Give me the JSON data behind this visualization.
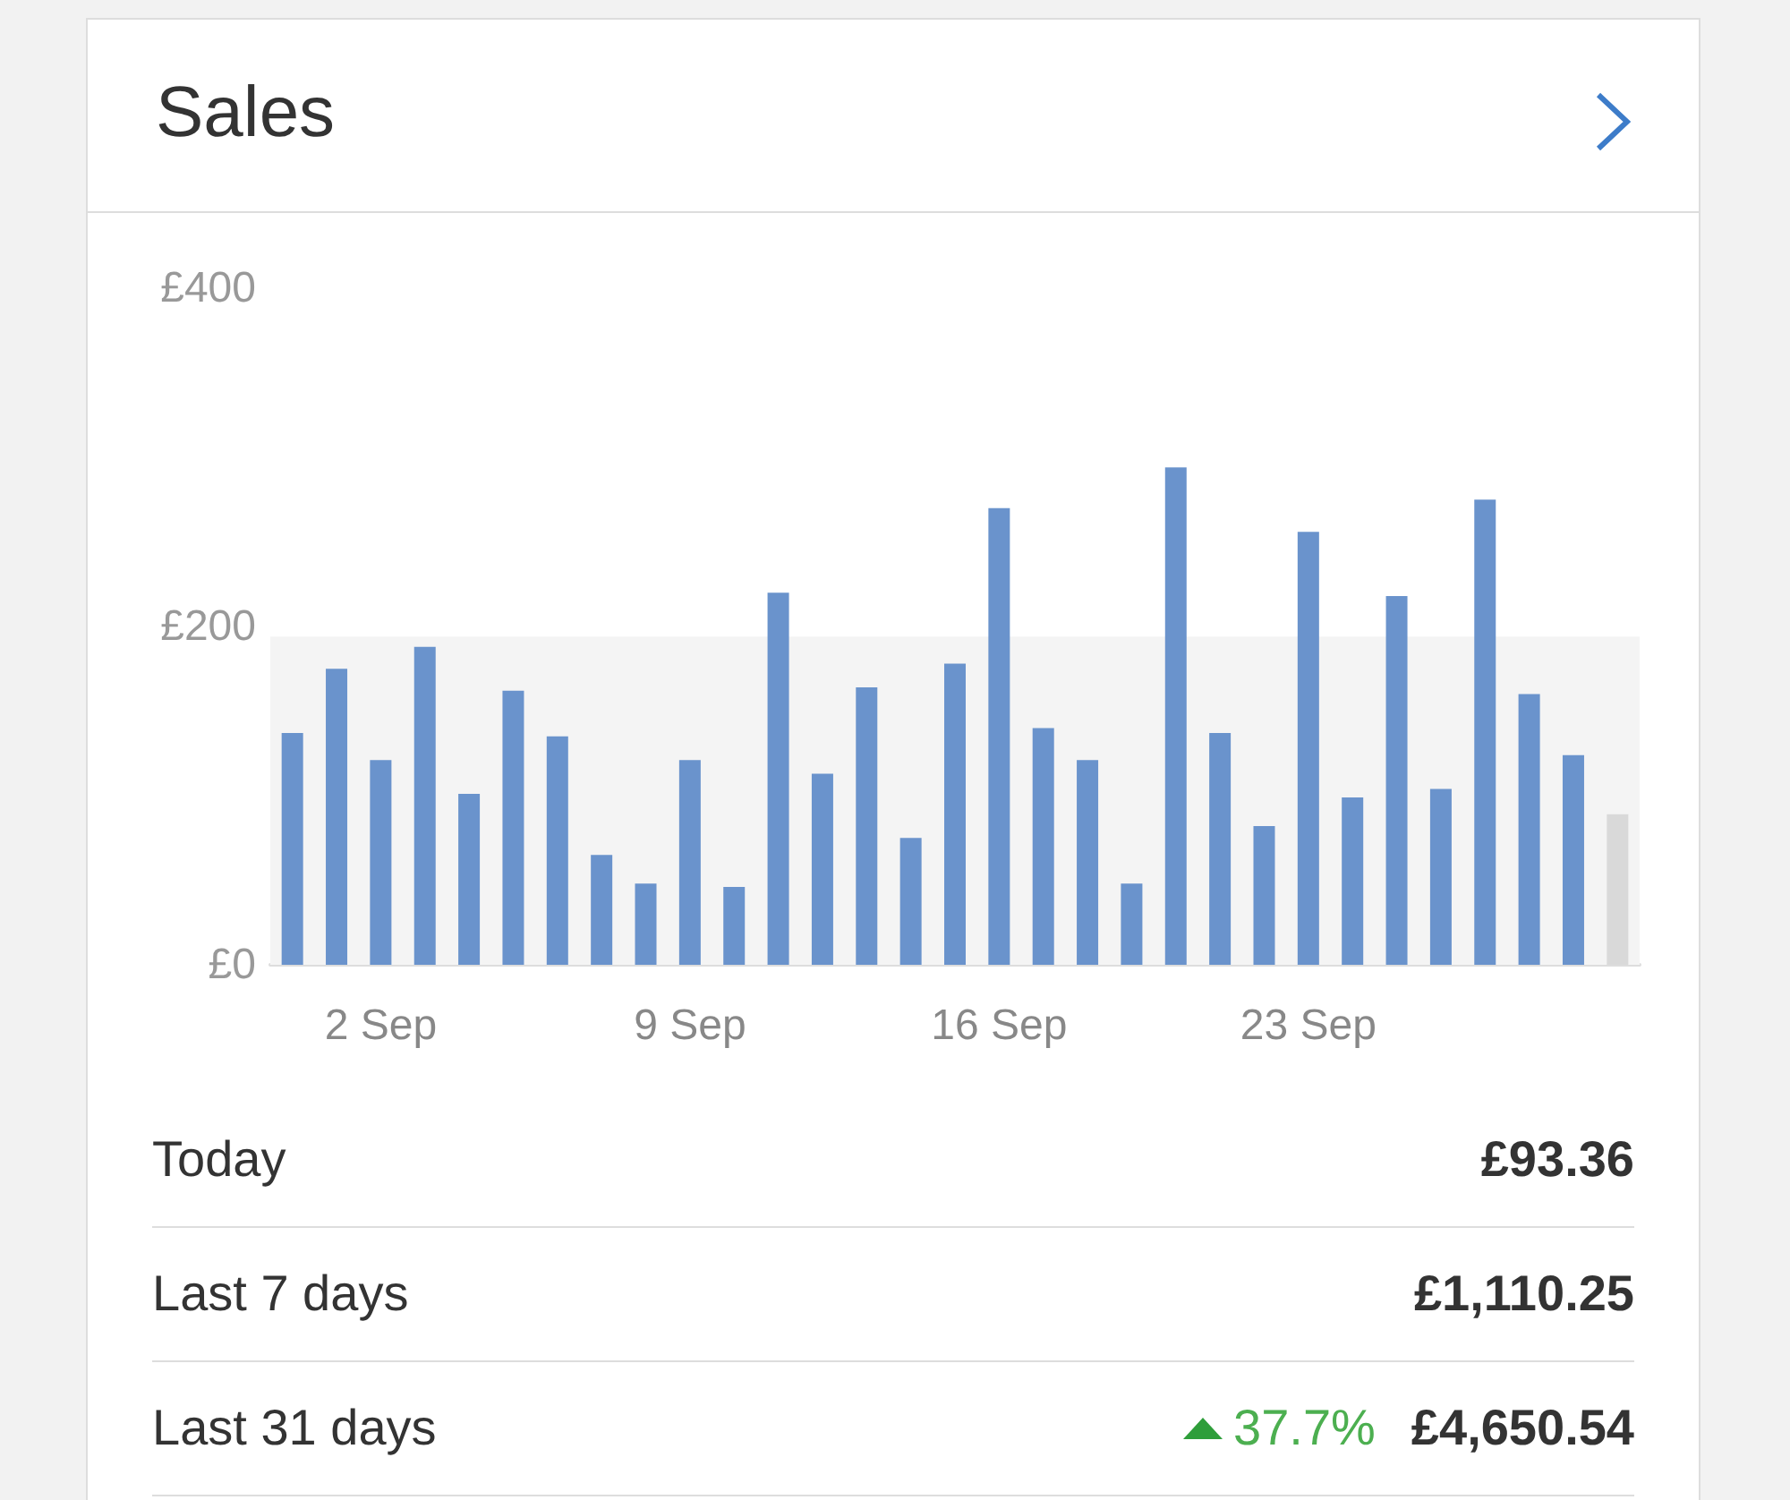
{
  "chart_data": {
    "type": "bar",
    "title": "Sales",
    "categories": [
      null,
      null,
      "2 Sep",
      null,
      null,
      null,
      null,
      null,
      null,
      "9 Sep",
      null,
      null,
      null,
      null,
      null,
      null,
      "16 Sep",
      null,
      null,
      null,
      null,
      null,
      null,
      "23 Sep",
      null,
      null,
      null,
      null,
      null,
      null,
      null
    ],
    "values": [
      137,
      175,
      121,
      188,
      101,
      162,
      135,
      65,
      48,
      121,
      46,
      220,
      113,
      164,
      75,
      178,
      270,
      140,
      121,
      48,
      294,
      137,
      82,
      256,
      99,
      218,
      104,
      275,
      160,
      124,
      89
    ],
    "colors": [
      "#6a93cc",
      "#6a93cc",
      "#6a93cc",
      "#6a93cc",
      "#6a93cc",
      "#6a93cc",
      "#6a93cc",
      "#6a93cc",
      "#6a93cc",
      "#6a93cc",
      "#6a93cc",
      "#6a93cc",
      "#6a93cc",
      "#6a93cc",
      "#6a93cc",
      "#6a93cc",
      "#6a93cc",
      "#6a93cc",
      "#6a93cc",
      "#6a93cc",
      "#6a93cc",
      "#6a93cc",
      "#6a93cc",
      "#6a93cc",
      "#6a93cc",
      "#6a93cc",
      "#6a93cc",
      "#6a93cc",
      "#6a93cc",
      "#6a93cc",
      "#d9d9d9"
    ],
    "ylim": [
      0,
      400
    ],
    "yticks": [
      {
        "value": 0,
        "label": "£0"
      },
      {
        "value": 200,
        "label": "£200"
      },
      {
        "value": 400,
        "label": "£400"
      }
    ],
    "grid": false,
    "bands": [
      {
        "axis": "y",
        "from": 0,
        "to": 194,
        "color": "#f4f4f4"
      }
    ],
    "annotations": [
      "Today",
      "£93.36",
      "Last 7 days",
      "£1,110.25",
      "Last 31 days",
      "37.7%",
      "£4,650.54"
    ]
  }
}
